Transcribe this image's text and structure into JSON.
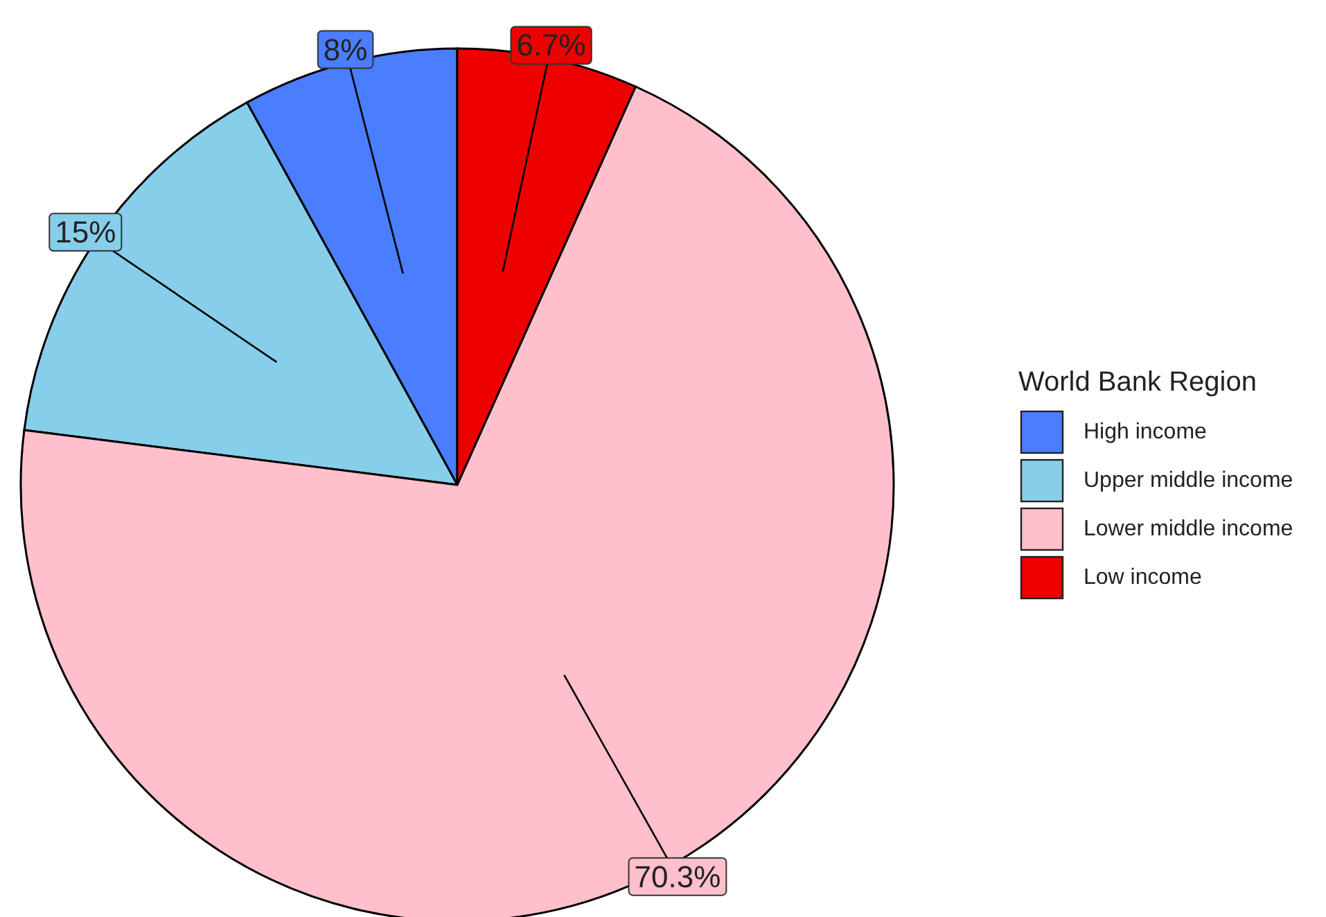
{
  "chart_data": {
    "type": "pie",
    "legend_title": "World Bank Region",
    "legend": "right",
    "categories": [
      "High income",
      "Upper middle income",
      "Lower middle income",
      "Low income"
    ],
    "values": [
      8,
      15,
      70.3,
      6.7
    ],
    "value_labels": [
      "8%",
      "15%",
      "70.3%",
      "6.7%"
    ],
    "colors": [
      "#4a7dff",
      "#87ceeb",
      "#ffc0cb",
      "#ee0000"
    ]
  }
}
